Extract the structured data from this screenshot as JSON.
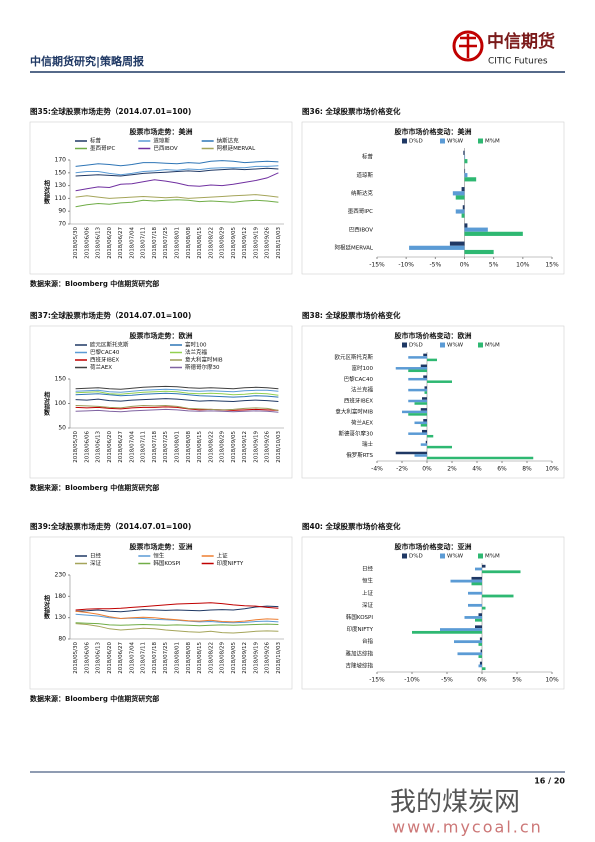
{
  "header": {
    "title": "中信期货研究|策略周报",
    "logo_cn": "中信期货",
    "logo_en": "CITIC Futures"
  },
  "figures": [
    {
      "caption": "图35:全球股票市场走势（2014.07.01=100)",
      "source": "数据来源：Bloomberg 中信期货研究部",
      "chart_data": {
        "type": "line",
        "title": "股票市场走势：美洲",
        "y_label": "相对指数",
        "categories": [
          "2018/05/30",
          "2018/06/06",
          "2018/06/13",
          "2018/06/20",
          "2018/06/27",
          "2018/07/04",
          "2018/07/11",
          "2018/07/18",
          "2018/07/25",
          "2018/08/01",
          "2018/08/08",
          "2018/08/15",
          "2018/08/22",
          "2018/08/29",
          "2018/09/05",
          "2018/09/12",
          "2018/09/19",
          "2018/09/26",
          "2018/10/03"
        ],
        "ylim": [
          70,
          170
        ],
        "yticks": [
          70,
          90,
          110,
          130,
          150,
          170
        ],
        "series": [
          {
            "name": "标普",
            "color": "#1f3864",
            "values": [
              145,
              146,
              147,
              146,
              145,
              147,
              149,
              150,
              151,
              152,
              153,
              152,
              154,
              155,
              156,
              155,
              156,
              157,
              156
            ]
          },
          {
            "name": "道琼斯",
            "color": "#5b9bd5",
            "values": [
              150,
              152,
              152,
              149,
              147,
              149,
              152,
              153,
              155,
              154,
              156,
              155,
              157,
              158,
              158,
              158,
              160,
              160,
              161
            ]
          },
          {
            "name": "纳斯达克",
            "color": "#2e75b6",
            "values": [
              160,
              162,
              164,
              163,
              161,
              163,
              166,
              166,
              165,
              164,
              166,
              165,
              168,
              169,
              168,
              166,
              167,
              168,
              167
            ]
          },
          {
            "name": "墨西哥IPC",
            "color": "#70ad47",
            "values": [
              97,
              100,
              102,
              101,
              103,
              104,
              107,
              106,
              107,
              108,
              107,
              105,
              106,
              105,
              104,
              106,
              107,
              106,
              104
            ]
          },
          {
            "name": "巴西IBOV",
            "color": "#7030a0",
            "values": [
              122,
              125,
              128,
              127,
              132,
              133,
              136,
              139,
              137,
              134,
              130,
              129,
              131,
              130,
              132,
              135,
              138,
              142,
              150
            ]
          },
          {
            "name": "阿根廷MERVAL",
            "color": "#a5a55a",
            "values": [
              112,
              114,
              112,
              110,
              111,
              112,
              113,
              112,
              111,
              112,
              110,
              111,
              112,
              113,
              114,
              115,
              116,
              114,
              112
            ]
          }
        ]
      }
    },
    {
      "caption": "图36: 全球股票市场价格变化",
      "chart_data": {
        "type": "hbar",
        "title": "股市市场价格变动：美洲",
        "categories": [
          "标普",
          "道琼斯",
          "纳斯达克",
          "墨西哥IPC",
          "巴西IBOV",
          "阿根廷MERVAL"
        ],
        "xlim": [
          -15,
          15
        ],
        "xticks": [
          {
            "value": -15,
            "label": "-15%"
          },
          {
            "value": -10,
            "label": "-10%"
          },
          {
            "value": -5,
            "label": "-5%"
          },
          {
            "value": 0,
            "label": "0%"
          },
          {
            "value": 5,
            "label": "5%"
          },
          {
            "value": 10,
            "label": "10%"
          },
          {
            "value": 15,
            "label": "15%"
          }
        ],
        "series": [
          {
            "name": "D%D",
            "color": "#1f3864",
            "values": [
              -0.2,
              0.1,
              -0.5,
              -0.3,
              0.5,
              -2.5
            ]
          },
          {
            "name": "W%W",
            "color": "#5b9bd5",
            "values": [
              0.1,
              0.5,
              -2,
              -1.5,
              4,
              -9.5
            ]
          },
          {
            "name": "M%M",
            "color": "#2eb872",
            "values": [
              0.5,
              2,
              -1.5,
              -0.5,
              10,
              5
            ]
          }
        ]
      }
    },
    {
      "caption": "图37:全球股票市场走势（2014.07.01=100)",
      "source": "数据来源：Bloomberg 中信期货研究部",
      "chart_data": {
        "type": "line",
        "title": "股票市场走势：欧洲",
        "y_label": "相对指数",
        "categories": [
          "2018/05/30",
          "2018/06/06",
          "2018/06/13",
          "2018/06/20",
          "2018/06/27",
          "2018/07/04",
          "2018/07/11",
          "2018/07/18",
          "2018/07/25",
          "2018/08/01",
          "2018/08/08",
          "2018/08/15",
          "2018/08/22",
          "2018/08/29",
          "2018/09/05",
          "2018/09/12",
          "2018/09/19",
          "2018/09/26",
          "2018/10/03"
        ],
        "ylim": [
          50,
          150
        ],
        "yticks": [
          50,
          100,
          150
        ],
        "series": [
          {
            "name": "欧元区斯托克斯",
            "color": "#1f3864",
            "values": [
              108,
              107,
              109,
              106,
              105,
              107,
              108,
              109,
              110,
              109,
              107,
              105,
              106,
              105,
              104,
              106,
              107,
              106,
              104
            ]
          },
          {
            "name": "富时100",
            "color": "#2e75b6",
            "values": [
              118,
              119,
              120,
              118,
              116,
              117,
              119,
              120,
              121,
              120,
              118,
              116,
              115,
              114,
              113,
              114,
              116,
              115,
              113
            ]
          },
          {
            "name": "巴黎CAC40",
            "color": "#5b9bd5",
            "values": [
              125,
              126,
              127,
              124,
              123,
              125,
              127,
              128,
              129,
              128,
              126,
              125,
              126,
              125,
              124,
              126,
              127,
              127,
              125
            ]
          },
          {
            "name": "法兰克福",
            "color": "#92d050",
            "values": [
              122,
              123,
              124,
              120,
              119,
              121,
              123,
              124,
              125,
              124,
              121,
              120,
              121,
              120,
              118,
              119,
              121,
              120,
              117
            ]
          },
          {
            "name": "西班牙IBEX",
            "color": "#c00000",
            "values": [
              92,
              91,
              92,
              90,
              89,
              91,
              92,
              92,
              93,
              92,
              89,
              87,
              88,
              87,
              86,
              87,
              88,
              87,
              86
            ]
          },
          {
            "name": "意大利富时MIB",
            "color": "#9c9c5a",
            "values": [
              96,
              95,
              94,
              92,
              91,
              94,
              96,
              95,
              96,
              94,
              90,
              89,
              88,
              87,
              88,
              90,
              91,
              90,
              86
            ]
          },
          {
            "name": "荷兰AEX",
            "color": "#404040",
            "values": [
              130,
              131,
              132,
              130,
              129,
              131,
              133,
              134,
              135,
              134,
              132,
              131,
              132,
              131,
              130,
              132,
              133,
              132,
              130
            ]
          },
          {
            "name": "斯德哥尔摩30",
            "color": "#8064a2",
            "values": [
              84,
              85,
              86,
              84,
              83,
              85,
              86,
              87,
              88,
              87,
              85,
              84,
              85,
              84,
              83,
              84,
              85,
              84,
              82
            ]
          }
        ]
      }
    },
    {
      "caption": "图38: 全球股票市场价格变化",
      "chart_data": {
        "type": "hbar",
        "title": "股市市场价格变动：欧洲",
        "categories": [
          "欧元区斯托克斯",
          "富时100",
          "巴黎CAC40",
          "法兰克福",
          "西班牙IBEX",
          "意大利富时MIB",
          "荷兰AEX",
          "斯德哥尔摩30",
          "瑞士",
          "俄罗斯RTS"
        ],
        "xlim": [
          -4,
          10
        ],
        "xticks": [
          {
            "value": -4,
            "label": "-4%"
          },
          {
            "value": -2,
            "label": "-2%"
          },
          {
            "value": 0,
            "label": "0%"
          },
          {
            "value": 2,
            "label": "2%"
          },
          {
            "value": 4,
            "label": "4%"
          },
          {
            "value": 6,
            "label": "6%"
          },
          {
            "value": 8,
            "label": "8%"
          },
          {
            "value": 10,
            "label": "10%"
          }
        ],
        "series": [
          {
            "name": "D%D",
            "color": "#1f3864",
            "values": [
              -0.3,
              -0.5,
              -0.3,
              -0.2,
              -0.4,
              -0.5,
              -0.3,
              -0.4,
              -0.1,
              -2.5
            ]
          },
          {
            "name": "W%W",
            "color": "#5b9bd5",
            "values": [
              -1.5,
              -2.5,
              -1.5,
              -1.5,
              -1.5,
              -2,
              -1,
              -1.5,
              -0.5,
              -1
            ]
          },
          {
            "name": "M%M",
            "color": "#2eb872",
            "values": [
              0.8,
              -1.5,
              2,
              -0.2,
              -1,
              -1.5,
              -0.5,
              0.5,
              2,
              8.5
            ]
          }
        ]
      }
    },
    {
      "caption": "图39:全球股票市场走势（2014.07.01=100)",
      "source": "数据来源：Bloomberg 中信期货研究部",
      "chart_data": {
        "type": "line",
        "title": "股票市场走势：亚洲",
        "y_label": "相对指数",
        "categories": [
          "2018/05/30",
          "2018/06/06",
          "2018/06/13",
          "2018/06/20",
          "2018/06/27",
          "2018/07/04",
          "2018/07/11",
          "2018/07/18",
          "2018/07/25",
          "2018/08/01",
          "2018/08/08",
          "2018/08/15",
          "2018/08/22",
          "2018/08/29",
          "2018/09/05",
          "2018/09/12",
          "2018/09/19",
          "2018/09/26",
          "2018/10/03"
        ],
        "ylim": [
          80,
          230
        ],
        "yticks": [
          80,
          130,
          180,
          230
        ],
        "series": [
          {
            "name": "日经",
            "color": "#1f3864",
            "values": [
              145,
              146,
              148,
              145,
              144,
              146,
              149,
              148,
              147,
              148,
              147,
              146,
              148,
              149,
              148,
              151,
              155,
              157,
              156
            ]
          },
          {
            "name": "恒生",
            "color": "#5b9bd5",
            "values": [
              138,
              136,
              134,
              130,
              128,
              129,
              128,
              126,
              125,
              124,
              122,
              120,
              121,
              119,
              118,
              119,
              121,
              122,
              120
            ]
          },
          {
            "name": "上证",
            "color": "#ed7d31",
            "values": [
              145,
              142,
              138,
              132,
              128,
              130,
              131,
              130,
              127,
              125,
              123,
              122,
              124,
              121,
              120,
              122,
              125,
              127,
              126
            ]
          },
          {
            "name": "深证",
            "color": "#a5a55a",
            "values": [
              116,
              114,
              110,
              104,
              101,
              103,
              105,
              104,
              101,
              99,
              97,
              96,
              98,
              95,
              94,
              96,
              98,
              99,
              98
            ]
          },
          {
            "name": "韩国KOSPI",
            "color": "#70ad47",
            "values": [
              118,
              117,
              116,
              113,
              112,
              113,
              114,
              113,
              112,
              113,
              112,
              111,
              112,
              113,
              112,
              113,
              114,
              115,
              114
            ]
          },
          {
            "name": "印度NIFTY",
            "color": "#c00000",
            "values": [
              148,
              150,
              151,
              151,
              152,
              154,
              156,
              158,
              160,
              162,
              163,
              164,
              165,
              163,
              160,
              158,
              157,
              154,
              152
            ]
          }
        ]
      }
    },
    {
      "caption": "图40: 全球股票市场价格变化",
      "chart_data": {
        "type": "hbar",
        "title": "股市市场价格变动：亚洲",
        "categories": [
          "日经",
          "恒生",
          "上证",
          "深证",
          "韩国KOSPI",
          "印度NIFTY",
          "台指",
          "雅加达综指",
          "吉隆坡综指"
        ],
        "xlim": [
          -15,
          10
        ],
        "xticks": [
          {
            "value": -15,
            "label": "-15%"
          },
          {
            "value": -10,
            "label": "-10%"
          },
          {
            "value": -5,
            "label": "-5%"
          },
          {
            "value": 0,
            "label": "0%"
          },
          {
            "value": 5,
            "label": "5%"
          },
          {
            "value": 10,
            "label": "10%"
          }
        ],
        "series": [
          {
            "name": "D%D",
            "color": "#1f3864",
            "values": [
              0.5,
              -1.5,
              0,
              0,
              -0.5,
              -1,
              -0.3,
              -0.2,
              -0.3
            ]
          },
          {
            "name": "W%W",
            "color": "#5b9bd5",
            "values": [
              -1,
              -4.5,
              -2,
              -2,
              -2.5,
              -6,
              -4,
              -3.5,
              -0.5
            ]
          },
          {
            "name": "M%M",
            "color": "#2eb872",
            "values": [
              5.5,
              -1.5,
              4.5,
              0.5,
              -1,
              -10,
              -0.5,
              -0.5,
              0.5
            ]
          }
        ]
      }
    }
  ],
  "footer": {
    "page": "16 / 20"
  },
  "watermark": {
    "name": "我的煤炭网",
    "url": "www.mycoal.cn"
  }
}
